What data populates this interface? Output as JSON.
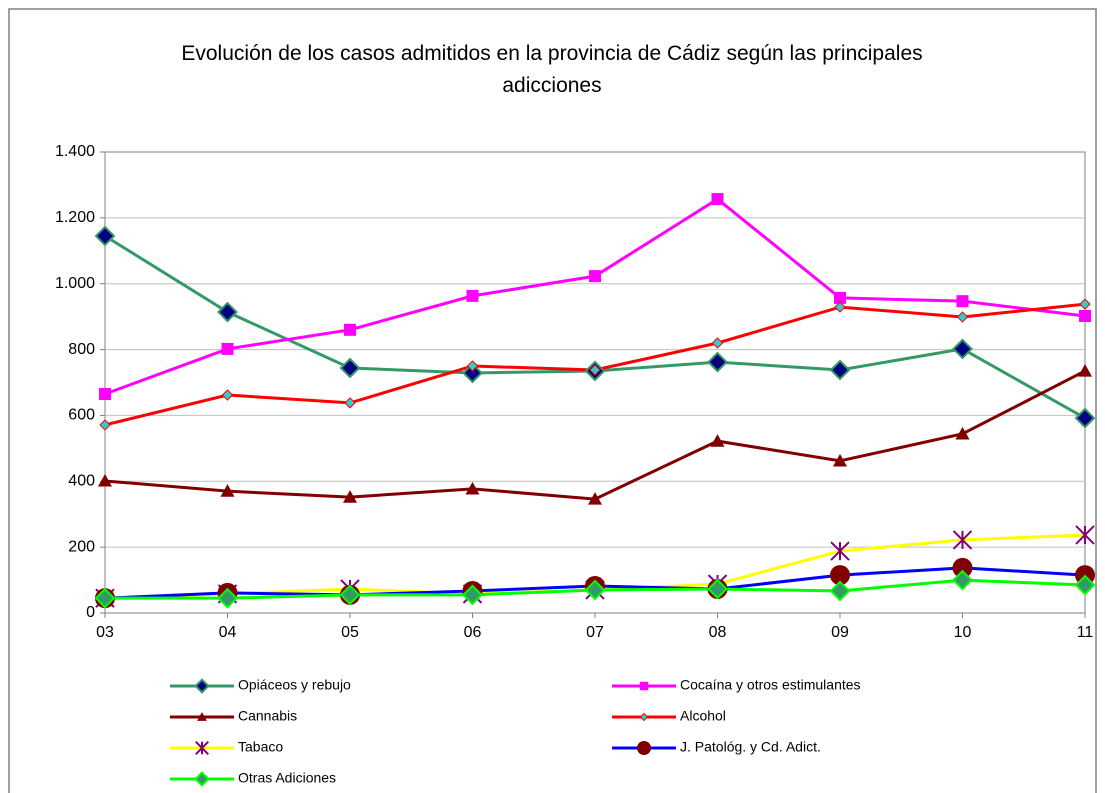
{
  "chart_data": {
    "type": "line",
    "title": "Evolución de los casos admitidos en la provincia de Cádiz según las principales adicciones",
    "categories": [
      "03",
      "04",
      "05",
      "06",
      "07",
      "08",
      "09",
      "10",
      "11"
    ],
    "ylim": [
      0,
      1400
    ],
    "yticks": [
      0,
      200,
      400,
      600,
      800,
      {
        "value": 1000,
        "label": "1.000"
      },
      {
        "value": 1200,
        "label": "1.200"
      },
      {
        "value": 1400,
        "label": "1.400"
      }
    ],
    "grid": true,
    "legend": "bottom",
    "series": [
      {
        "name": "Opiáceos y rebujo",
        "color": "#339966",
        "marker": "diamond",
        "marker_color": "#000080",
        "values": [
          1145,
          914,
          744,
          729,
          735,
          762,
          738,
          802,
          592
        ]
      },
      {
        "name": "Cocaína y otros estimulantes",
        "color": "#ff00ff",
        "marker": "square",
        "marker_color": "#ff00ff",
        "values": [
          665,
          802,
          860,
          963,
          1023,
          1257,
          957,
          947,
          902
        ]
      },
      {
        "name": "Cannabis",
        "color": "#800000",
        "marker": "triangle",
        "marker_color": "#800000",
        "values": [
          401,
          370,
          352,
          377,
          346,
          522,
          462,
          544,
          735
        ]
      },
      {
        "name": "Alcohol",
        "color": "#ff0000",
        "marker": "small-diamond",
        "marker_color": "#33cccc",
        "values": [
          571,
          662,
          638,
          750,
          738,
          820,
          929,
          899,
          938
        ]
      },
      {
        "name": "Tabaco",
        "color": "#ffff00",
        "marker": "star",
        "marker_color": "#800080",
        "values": [
          45,
          58,
          73,
          58,
          70,
          88,
          188,
          222,
          237
        ]
      },
      {
        "name": "J. Patológ. y Cd. Adict.",
        "color": "#0000ff",
        "marker": "circle",
        "marker_color": "#800000",
        "values": [
          45,
          61,
          55,
          67,
          82,
          73,
          115,
          137,
          115
        ]
      },
      {
        "name": "Otras Adiciones",
        "color": "#00ff00",
        "marker": "diamond",
        "marker_color": "#339966",
        "values": [
          45,
          45,
          55,
          55,
          70,
          73,
          67,
          100,
          85
        ]
      }
    ]
  }
}
